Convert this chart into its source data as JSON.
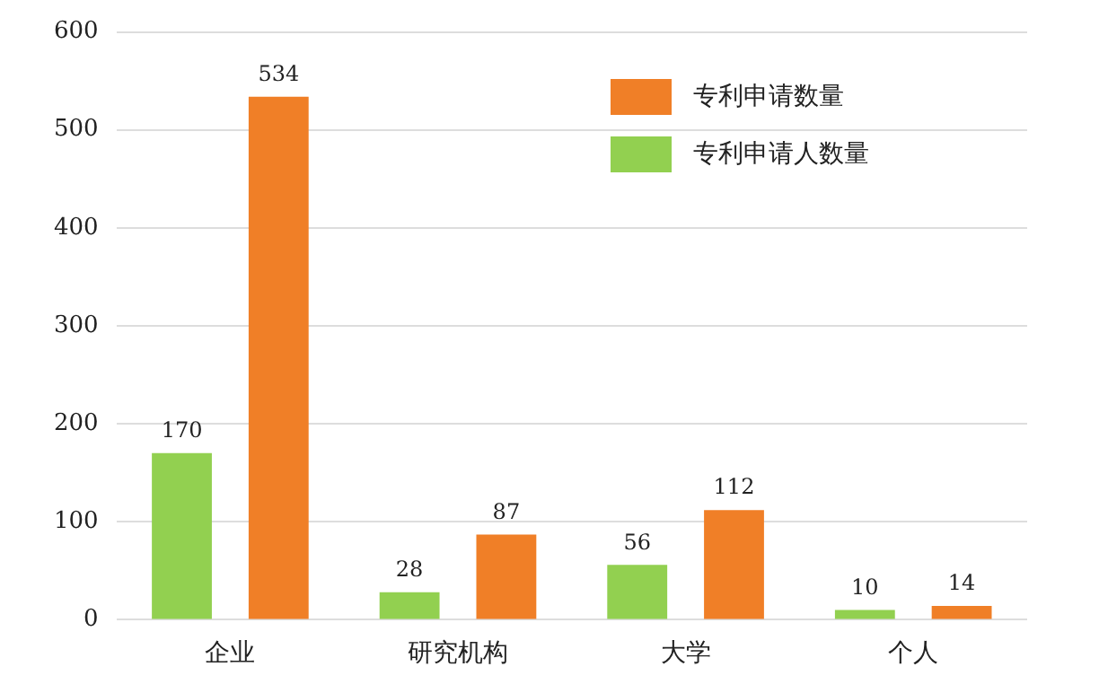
{
  "chart_data": {
    "type": "bar",
    "categories": [
      "企业",
      "研究机构",
      "大学",
      "个人"
    ],
    "series": [
      {
        "name": "专利申请人数量",
        "color": "#92d050",
        "values": [
          170,
          28,
          56,
          10
        ]
      },
      {
        "name": "专利申请数量",
        "color": "#f07f27",
        "values": [
          534,
          87,
          112,
          14
        ]
      }
    ],
    "ylim": [
      0,
      600
    ],
    "yticks": [
      0,
      100,
      200,
      300,
      400,
      500,
      600
    ],
    "grid": "y",
    "legend": "top right",
    "data_labels": true
  }
}
